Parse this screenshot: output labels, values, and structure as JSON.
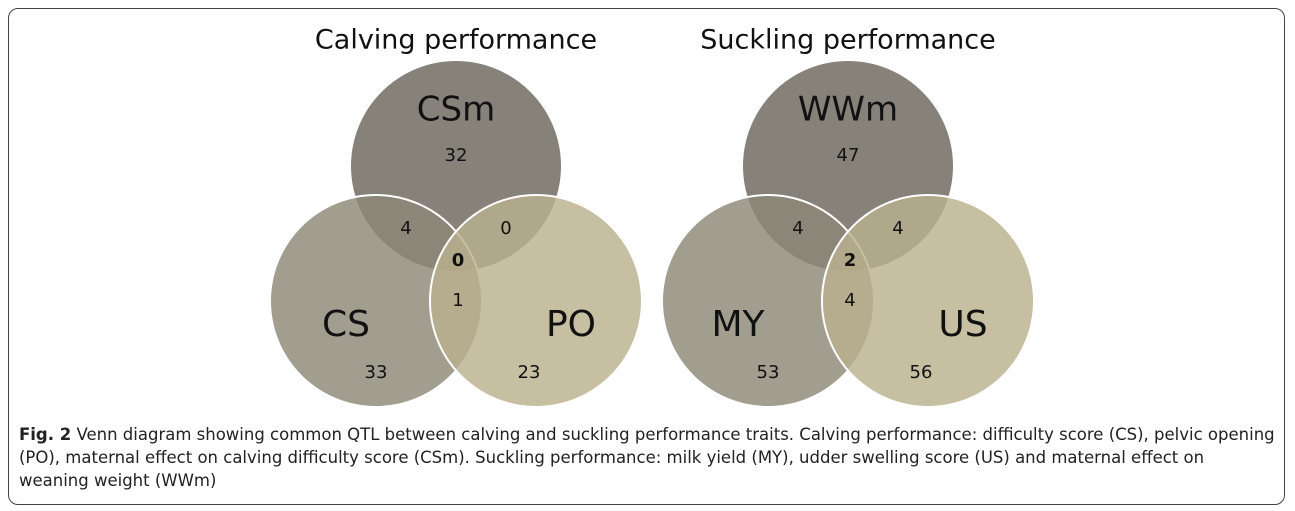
{
  "venns": [
    {
      "title": "Calving performance",
      "sets": [
        "CSm",
        "CS",
        "PO"
      ],
      "regions": [
        32,
        33,
        23,
        4,
        0,
        1,
        0
      ]
    },
    {
      "title": "Suckling performance",
      "sets": [
        "WWm",
        "MY",
        "US"
      ],
      "regions": [
        47,
        53,
        56,
        4,
        4,
        4,
        2
      ]
    }
  ],
  "caption": {
    "label": "Fig. 2",
    "text": "Venn diagram showing common QTL between calving and suckling performance traits. Calving performance: difficulty score (CS), pelvic opening (PO), maternal effect on calving difficulty score (CSm). Suckling performance: milk yield (MY), udder swelling score (US) and maternal effect on weaning weight (WWm)"
  }
}
